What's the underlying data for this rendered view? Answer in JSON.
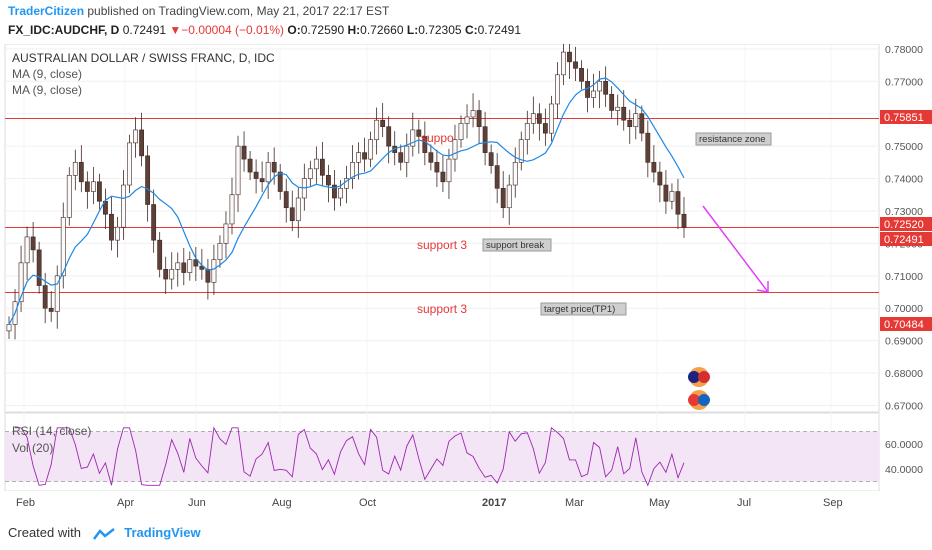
{
  "header": {
    "author": "TraderCitizen",
    "published_text": "published on TradingView.com, May 21, 2017 22:17 EST",
    "symbol": "FX_IDC:AUDCHF, D",
    "last": "0.72491",
    "change": "▼−0.00004 (−0.01%)",
    "o_label": "O:",
    "o": "0.72590",
    "h_label": "H:",
    "h": "0.72660",
    "l_label": "L:",
    "l": "0.72305",
    "c_label": "C:",
    "c": "0.72491"
  },
  "chart_titles": {
    "instrument": "AUSTRALIAN DOLLAR / SWISS FRANC, D, IDC",
    "ma1": "MA (9, close)",
    "ma2": "MA (9, close)",
    "rsi": "RSI (14, close)",
    "vol": "Vol (20)"
  },
  "annotations": {
    "support_top": "support 3",
    "support_break": "support break",
    "support_bottom": "support 3",
    "target": "target price(TP1)",
    "resistance": "resistance zone",
    "resistance_inline": "suppo"
  },
  "price_labels": {
    "resistance": "0.75851",
    "high_mark": "0.72520",
    "last": "0.72491",
    "target": "0.70484"
  },
  "footer": {
    "created_with": "Created with",
    "brand": "TradingView"
  },
  "colors": {
    "up": "#26a69a",
    "down": "#ef5350",
    "body_dark": "#5d4037",
    "ma": "#1e88e5",
    "level_line": "#e53935",
    "rsi_line": "#9c27b0",
    "rsi_band": "#f3e5f5",
    "arrow": "#e040fb"
  },
  "chart_data": {
    "type": "candlestick",
    "title": "AUSTRALIAN DOLLAR / SWISS FRANC, D, IDC",
    "price_axis": {
      "ticks": [
        "0.78000",
        "0.77000",
        "0.76000",
        "0.75000",
        "0.74000",
        "0.73000",
        "0.72000",
        "0.71000",
        "0.70000",
        "0.69000",
        "0.68000",
        "0.67000"
      ],
      "ylim": [
        0.668,
        0.7815
      ]
    },
    "time_axis": [
      "Feb",
      "Apr",
      "Jun",
      "Aug",
      "Oct",
      "2017",
      "Mar",
      "May",
      "Jul",
      "Sep"
    ],
    "levels": [
      {
        "name": "resistance zone",
        "value": 0.75851
      },
      {
        "name": "support 3",
        "value": 0.7249
      },
      {
        "name": "target price(TP1)",
        "value": 0.70484
      }
    ],
    "approx_close_series": [
      0.695,
      0.702,
      0.714,
      0.722,
      0.718,
      0.707,
      0.7,
      0.699,
      0.71,
      0.728,
      0.741,
      0.745,
      0.739,
      0.736,
      0.739,
      0.733,
      0.729,
      0.721,
      0.725,
      0.738,
      0.751,
      0.755,
      0.747,
      0.732,
      0.721,
      0.712,
      0.709,
      0.712,
      0.714,
      0.711,
      0.715,
      0.713,
      0.712,
      0.708,
      0.715,
      0.72,
      0.726,
      0.735,
      0.75,
      0.746,
      0.742,
      0.74,
      0.739,
      0.745,
      0.742,
      0.736,
      0.731,
      0.727,
      0.734,
      0.74,
      0.743,
      0.746,
      0.741,
      0.738,
      0.734,
      0.737,
      0.74,
      0.745,
      0.748,
      0.746,
      0.752,
      0.758,
      0.756,
      0.75,
      0.748,
      0.745,
      0.75,
      0.755,
      0.753,
      0.748,
      0.745,
      0.742,
      0.739,
      0.746,
      0.752,
      0.757,
      0.759,
      0.761,
      0.756,
      0.748,
      0.744,
      0.737,
      0.731,
      0.738,
      0.745,
      0.752,
      0.757,
      0.76,
      0.757,
      0.754,
      0.763,
      0.772,
      0.779,
      0.776,
      0.774,
      0.77,
      0.765,
      0.767,
      0.77,
      0.766,
      0.761,
      0.762,
      0.758,
      0.756,
      0.76,
      0.754,
      0.745,
      0.742,
      0.738,
      0.733,
      0.736,
      0.729,
      0.7249
    ],
    "rsi": {
      "label": "RSI (14, close)",
      "ticks": [
        "60.0000",
        "40.0000"
      ],
      "ylim": [
        24,
        76
      ]
    },
    "projection": {
      "from_date_label": "May",
      "direction": "down",
      "target": 0.70484
    }
  }
}
